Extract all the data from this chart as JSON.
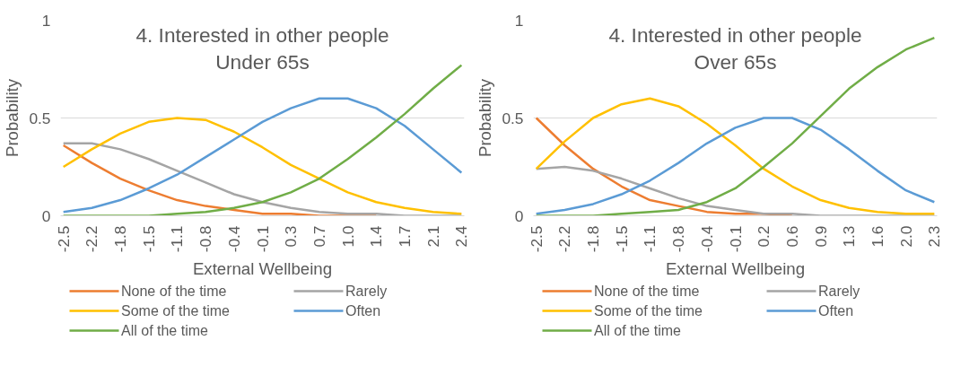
{
  "chart_data": [
    {
      "type": "line",
      "title": "4. Interested in other people",
      "subtitle": "Under 65s",
      "xlabel": "External Wellbeing",
      "ylabel": "Probability",
      "categories": [
        "-2.5",
        "-2.2",
        "-1.8",
        "-1.5",
        "-1.1",
        "-0.8",
        "-0.4",
        "-0.1",
        "0.3",
        "0.7",
        "1.0",
        "1.4",
        "1.7",
        "2.1",
        "2.4"
      ],
      "ylim": [
        0,
        1
      ],
      "yticks": [
        0,
        0.5,
        1
      ],
      "grid": "y",
      "legend": "bottom",
      "line_style": "solid",
      "series": [
        {
          "name": "None of the time",
          "color": "#ed7d31",
          "values": [
            0.36,
            0.27,
            0.19,
            0.13,
            0.08,
            0.05,
            0.03,
            0.01,
            0.01,
            0,
            0,
            0,
            null,
            null,
            null
          ]
        },
        {
          "name": "Rarely",
          "color": "#a5a5a5",
          "values": [
            0.37,
            0.37,
            0.34,
            0.29,
            0.23,
            0.17,
            0.11,
            0.07,
            0.04,
            0.02,
            0.01,
            0.01,
            0,
            0,
            0
          ]
        },
        {
          "name": "Some of the time",
          "color": "#ffc000",
          "values": [
            0.25,
            0.34,
            0.42,
            0.48,
            0.5,
            0.49,
            0.43,
            0.35,
            0.26,
            0.19,
            0.12,
            0.07,
            0.04,
            0.02,
            0.01
          ]
        },
        {
          "name": "Often",
          "color": "#5b9bd5",
          "values": [
            0.02,
            0.04,
            0.08,
            0.14,
            0.21,
            0.3,
            0.39,
            0.48,
            0.55,
            0.6,
            0.6,
            0.55,
            0.46,
            0.34,
            0.22
          ]
        },
        {
          "name": "All of the time",
          "color": "#70ad47",
          "values": [
            0,
            0,
            0,
            0,
            0.01,
            0.02,
            0.04,
            0.07,
            0.12,
            0.19,
            0.29,
            0.4,
            0.52,
            0.65,
            0.77
          ]
        }
      ]
    },
    {
      "type": "line",
      "title": "4. Interested in other people",
      "subtitle": "Over 65s",
      "xlabel": "External Wellbeing",
      "ylabel": "Probability",
      "categories": [
        "-2.5",
        "-2.2",
        "-1.8",
        "-1.5",
        "-1.1",
        "-0.8",
        "-0.4",
        "-0.1",
        "0.2",
        "0.6",
        "0.9",
        "1.3",
        "1.6",
        "2.0",
        "2.3"
      ],
      "ylim": [
        0,
        1
      ],
      "yticks": [
        0,
        0.5,
        1
      ],
      "grid": "y",
      "legend": "bottom",
      "line_style": "solid",
      "series": [
        {
          "name": "None of the time",
          "color": "#ed7d31",
          "values": [
            0.5,
            0.36,
            0.24,
            0.15,
            0.08,
            0.05,
            0.02,
            0.01,
            0.01,
            0,
            null,
            null,
            null,
            null,
            null
          ]
        },
        {
          "name": "Rarely",
          "color": "#a5a5a5",
          "values": [
            0.24,
            0.25,
            0.23,
            0.19,
            0.14,
            0.09,
            0.05,
            0.03,
            0.01,
            0.01,
            0,
            0,
            0,
            0,
            0
          ]
        },
        {
          "name": "Some of the time",
          "color": "#ffc000",
          "values": [
            0.24,
            0.38,
            0.5,
            0.57,
            0.6,
            0.56,
            0.47,
            0.36,
            0.24,
            0.15,
            0.08,
            0.04,
            0.02,
            0.01,
            0.01
          ]
        },
        {
          "name": "Often",
          "color": "#5b9bd5",
          "values": [
            0.01,
            0.03,
            0.06,
            0.11,
            0.18,
            0.27,
            0.37,
            0.45,
            0.5,
            0.5,
            0.44,
            0.34,
            0.23,
            0.13,
            0.07
          ]
        },
        {
          "name": "All of the time",
          "color": "#70ad47",
          "values": [
            0,
            0,
            0,
            0.01,
            0.02,
            0.03,
            0.07,
            0.14,
            0.25,
            0.37,
            0.51,
            0.65,
            0.76,
            0.85,
            0.91
          ]
        }
      ]
    }
  ]
}
